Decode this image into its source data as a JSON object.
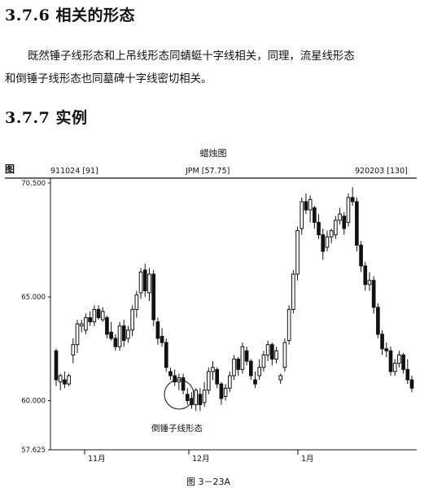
{
  "sections": {
    "s1_title": "3.7.6 相关的形态",
    "s1_line1": "既然锤子线形态和上吊线形态同蜻蜓十字线相关，同理，流星线形态",
    "s1_line2": "和倒锤子线形态也同墓碑十字线密切相关。",
    "s2_title": "3.7.7 实例"
  },
  "chart_data": {
    "type": "candlestick",
    "title": "蜡烛图",
    "corner_label": "图",
    "info_left": "911024 [91]",
    "info_center": "JPM [57.75]",
    "info_right": "920203 [130]",
    "yticks": [
      70.5,
      65.0,
      60.0,
      57.625
    ],
    "ytick_labels": [
      "70.500",
      "65.000",
      "60.000",
      "57.625"
    ],
    "ylim": [
      57.625,
      70.5
    ],
    "xticks": [
      "11月",
      "12月",
      "1月"
    ],
    "annotation": "倒锤子线形态",
    "caption": "图 3－23A",
    "candles": [
      [
        62.4,
        62.5,
        60.7,
        61.0
      ],
      [
        60.9,
        61.3,
        60.5,
        61.2
      ],
      [
        61.0,
        61.4,
        60.6,
        60.8
      ],
      [
        60.8,
        61.3,
        60.7,
        61.2
      ],
      [
        62.2,
        63.0,
        61.8,
        62.7
      ],
      [
        62.7,
        63.9,
        62.3,
        63.7
      ],
      [
        63.6,
        63.9,
        63.3,
        63.7
      ],
      [
        63.4,
        64.2,
        63.2,
        64.0
      ],
      [
        64.0,
        64.3,
        63.6,
        63.8
      ],
      [
        63.8,
        64.6,
        63.6,
        64.4
      ],
      [
        64.4,
        64.6,
        63.9,
        64.0
      ],
      [
        63.9,
        64.5,
        63.8,
        64.3
      ],
      [
        64.0,
        64.1,
        63.0,
        63.2
      ],
      [
        63.3,
        63.8,
        62.9,
        63.0
      ],
      [
        63.0,
        63.2,
        62.4,
        62.6
      ],
      [
        62.6,
        63.8,
        62.4,
        63.6
      ],
      [
        63.6,
        63.9,
        62.6,
        62.9
      ],
      [
        63.0,
        63.6,
        62.8,
        63.4
      ],
      [
        63.4,
        64.6,
        63.1,
        64.4
      ],
      [
        64.4,
        65.3,
        64.0,
        65.1
      ],
      [
        65.2,
        66.4,
        64.9,
        66.2
      ],
      [
        66.3,
        66.6,
        65.0,
        65.3
      ],
      [
        65.2,
        66.4,
        64.8,
        66.1
      ],
      [
        66.1,
        66.3,
        63.6,
        63.9
      ],
      [
        63.8,
        64.0,
        62.7,
        63.0
      ],
      [
        63.1,
        63.5,
        62.6,
        62.8
      ],
      [
        62.8,
        63.0,
        61.4,
        61.6
      ],
      [
        61.4,
        61.6,
        61.0,
        61.2
      ],
      [
        61.2,
        61.5,
        60.7,
        60.9
      ],
      [
        60.9,
        61.3,
        60.5,
        61.1
      ],
      [
        61.1,
        61.3,
        60.3,
        60.5
      ],
      [
        60.3,
        60.6,
        59.8,
        60.0
      ],
      [
        60.1,
        60.4,
        59.6,
        59.8
      ],
      [
        59.8,
        60.6,
        59.5,
        60.5
      ],
      [
        60.3,
        60.6,
        59.5,
        59.8
      ],
      [
        59.9,
        60.9,
        59.7,
        60.5
      ],
      [
        60.5,
        61.6,
        60.3,
        61.4
      ],
      [
        61.4,
        61.9,
        61.0,
        61.6
      ],
      [
        61.5,
        61.6,
        60.6,
        60.8
      ],
      [
        60.8,
        60.9,
        59.8,
        60.1
      ],
      [
        60.2,
        60.8,
        60.0,
        60.6
      ],
      [
        60.6,
        61.4,
        60.4,
        61.2
      ],
      [
        61.2,
        62.2,
        61.0,
        62.0
      ],
      [
        62.0,
        62.1,
        61.2,
        61.5
      ],
      [
        61.5,
        62.8,
        61.3,
        62.6
      ],
      [
        62.4,
        62.6,
        61.7,
        61.9
      ],
      [
        61.9,
        62.0,
        61.0,
        61.2
      ],
      [
        61.0,
        61.4,
        60.6,
        60.8
      ],
      [
        61.2,
        62.0,
        61.0,
        61.6
      ],
      [
        61.6,
        62.4,
        61.4,
        62.2
      ],
      [
        62.2,
        62.9,
        61.9,
        62.7
      ],
      [
        62.7,
        62.8,
        61.7,
        62.0
      ],
      [
        62.0,
        62.6,
        61.8,
        62.4
      ],
      [
        61.0,
        61.3,
        60.8,
        61.2
      ],
      [
        61.6,
        63.0,
        61.4,
        62.8
      ],
      [
        62.9,
        64.6,
        62.7,
        64.4
      ],
      [
        64.4,
        66.3,
        64.2,
        66.1
      ],
      [
        66.1,
        68.4,
        65.8,
        68.2
      ],
      [
        68.3,
        69.8,
        68.0,
        69.6
      ],
      [
        69.6,
        70.0,
        69.0,
        69.2
      ],
      [
        69.2,
        69.9,
        68.6,
        69.7
      ],
      [
        69.3,
        69.4,
        68.3,
        68.6
      ],
      [
        68.6,
        69.0,
        67.8,
        68.0
      ],
      [
        68.0,
        68.3,
        66.8,
        67.2
      ],
      [
        67.4,
        68.2,
        67.2,
        67.9
      ],
      [
        67.9,
        68.3,
        67.6,
        68.2
      ],
      [
        68.0,
        68.9,
        67.8,
        68.7
      ],
      [
        68.7,
        69.3,
        68.5,
        69.0
      ],
      [
        68.9,
        69.1,
        68.0,
        68.3
      ],
      [
        68.6,
        70.0,
        68.4,
        69.8
      ],
      [
        69.8,
        70.3,
        69.4,
        69.6
      ],
      [
        69.6,
        69.8,
        67.2,
        67.5
      ],
      [
        67.5,
        67.7,
        66.2,
        66.5
      ],
      [
        66.5,
        66.7,
        65.3,
        65.6
      ],
      [
        65.6,
        66.2,
        65.3,
        65.8
      ],
      [
        65.8,
        66.0,
        64.2,
        64.5
      ],
      [
        64.5,
        64.7,
        63.0,
        63.2
      ],
      [
        63.2,
        63.4,
        62.2,
        62.5
      ],
      [
        62.5,
        62.8,
        62.1,
        62.4
      ],
      [
        62.4,
        62.6,
        61.2,
        61.4
      ],
      [
        61.4,
        62.0,
        61.2,
        61.8
      ],
      [
        61.8,
        62.4,
        61.6,
        62.2
      ],
      [
        62.2,
        62.3,
        61.3,
        61.5
      ],
      [
        61.5,
        62.0,
        60.8,
        61.0
      ],
      [
        61.0,
        61.2,
        60.4,
        60.6
      ]
    ]
  }
}
